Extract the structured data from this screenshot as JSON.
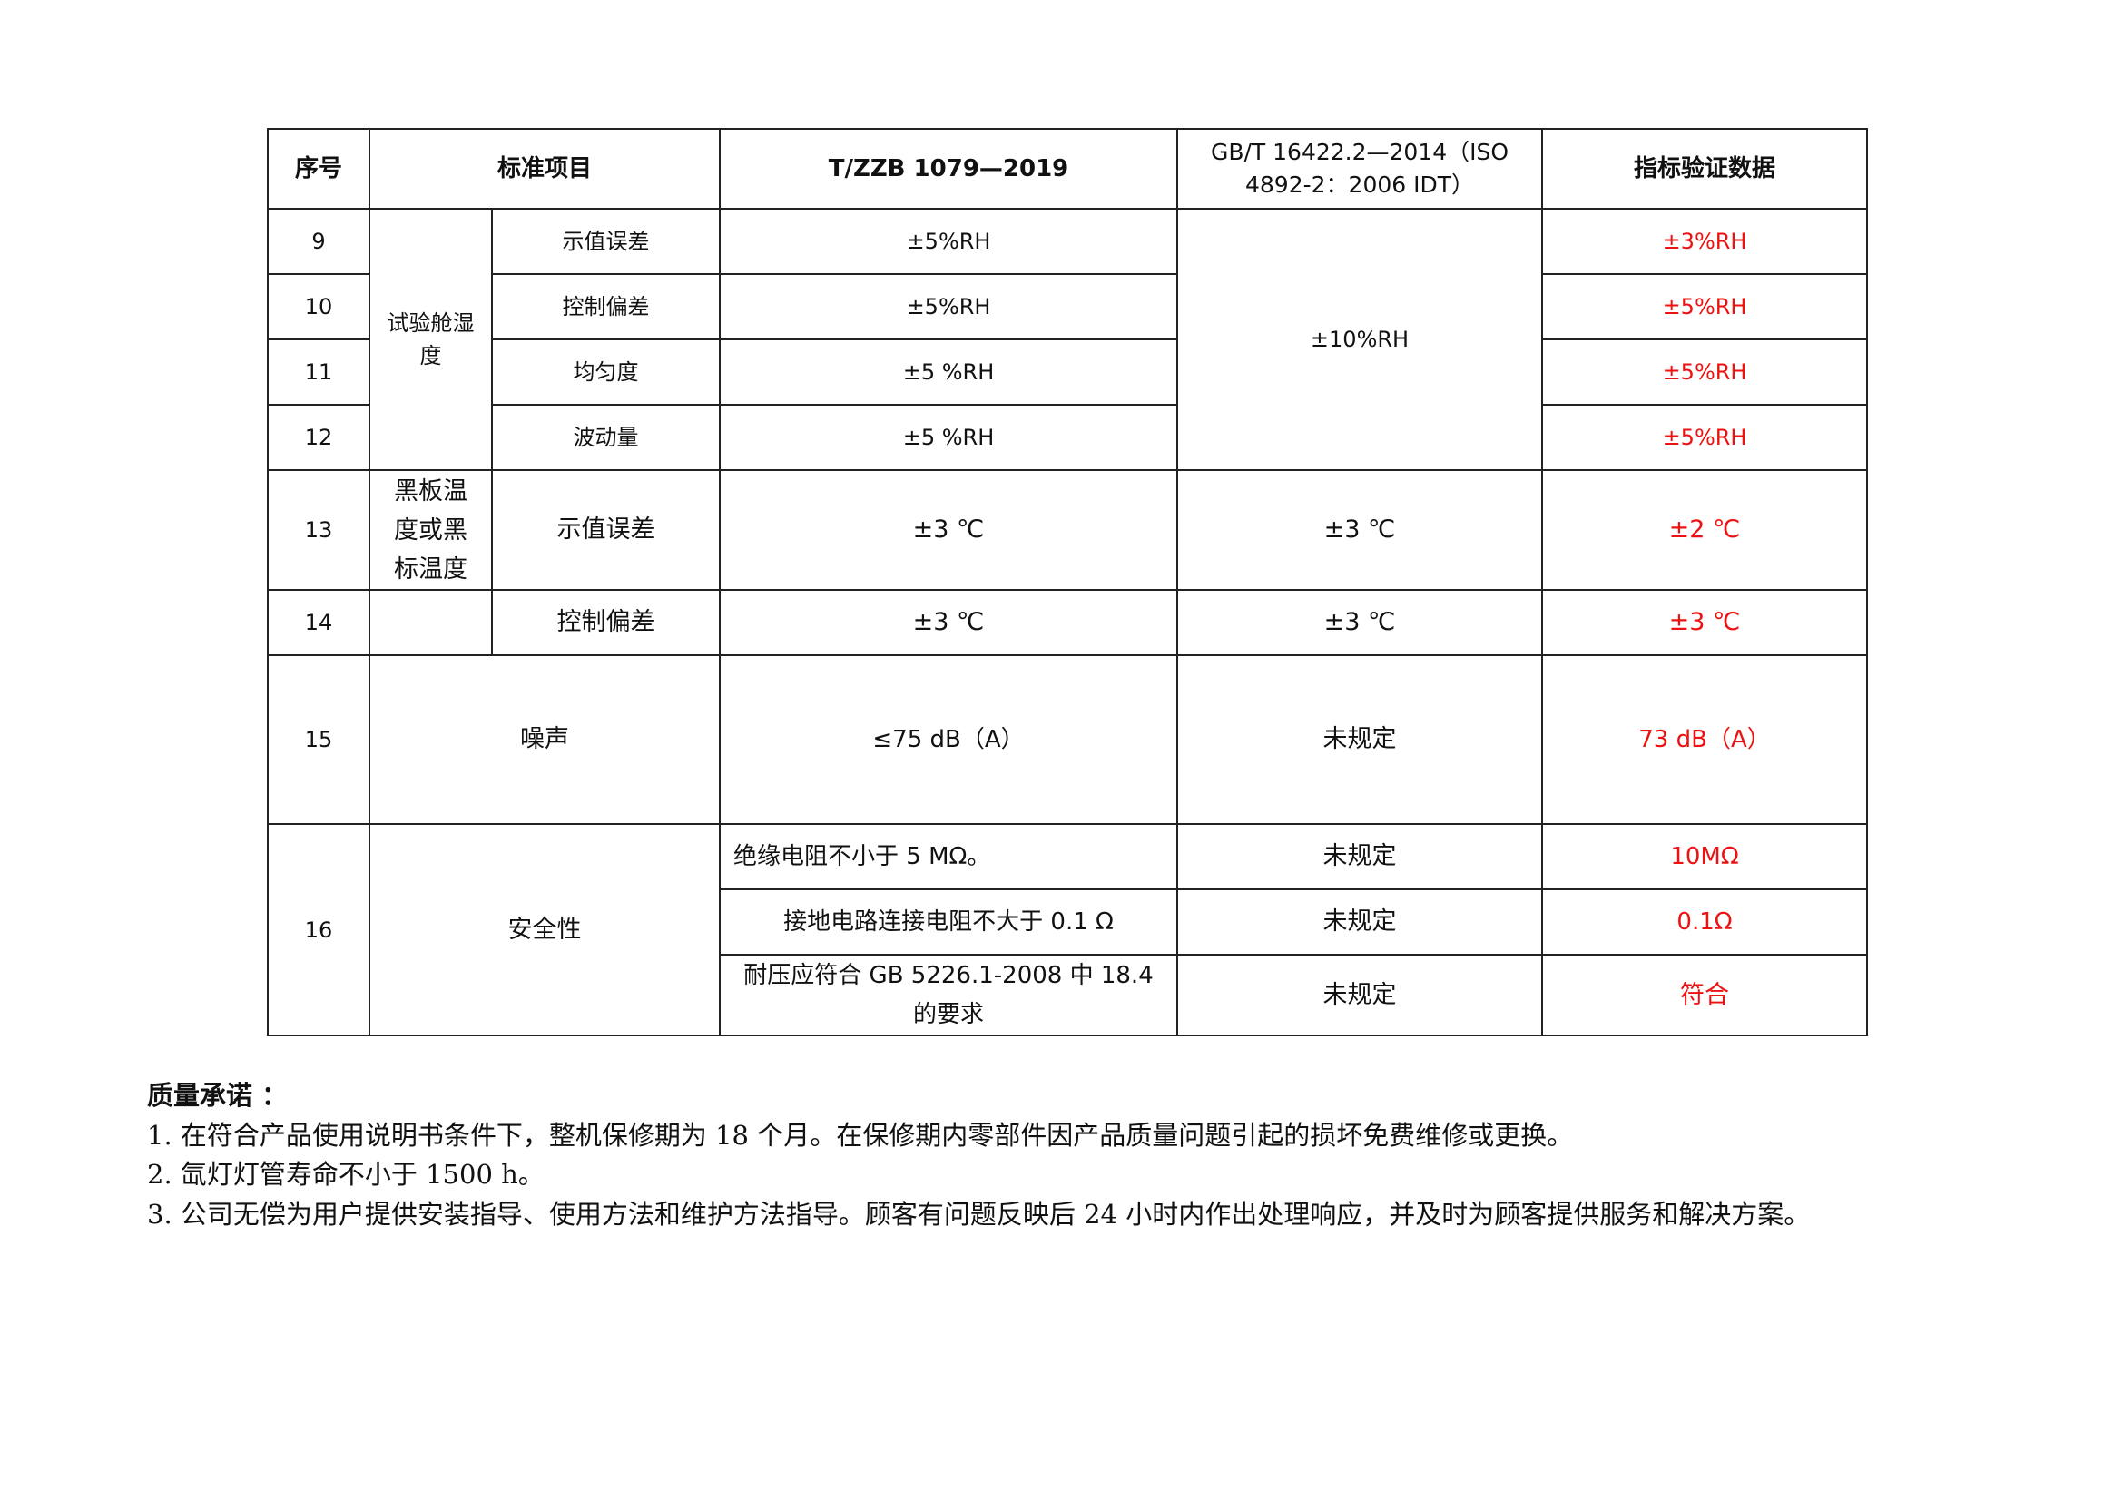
{
  "table": {
    "headers": [
      "序号",
      "标准项目",
      "T/ZZB 1079—2019",
      "GB/T 16422.2—2014（ISO 4892-2：2006 IDT）",
      "指标验证数据"
    ],
    "groups": {
      "humidity": "试验舱湿度",
      "blackpanel": "黑板温度或黑标温度",
      "noise": "噪声",
      "safety": "安全性"
    },
    "rows": [
      {
        "no": "9",
        "item": "示值误差",
        "tzzb": "±5%RH",
        "gbt": "±10%RH",
        "verify": "±3%RH"
      },
      {
        "no": "10",
        "item": "控制偏差",
        "tzzb": "±5%RH",
        "verify": "±5%RH"
      },
      {
        "no": "11",
        "item": "均匀度",
        "tzzb": "±5 %RH",
        "verify": "±5%RH"
      },
      {
        "no": "12",
        "item": "波动量",
        "tzzb": "±5 %RH",
        "verify": "±5%RH"
      },
      {
        "no": "13",
        "item": "示值误差",
        "tzzb": "±3 ℃",
        "gbt": "±3 ℃",
        "verify": "±2 ℃"
      },
      {
        "no": "14",
        "item": "控制偏差",
        "tzzb": "±3 ℃",
        "gbt": "±3 ℃",
        "verify": "±3 ℃"
      },
      {
        "no": "15",
        "tzzb": "≤75 dB（A）",
        "gbt": "未规定",
        "verify": "73 dB（A）"
      },
      {
        "no": "16",
        "sub": [
          {
            "tzzb": "绝缘电阻不小于 5 MΩ。",
            "gbt": "未规定",
            "verify": "10MΩ"
          },
          {
            "tzzb": "接地电路连接电阻不大于 0.1 Ω",
            "gbt": "未规定",
            "verify": "0.1Ω"
          },
          {
            "tzzb": "耐压应符合 GB 5226.1-2008 中 18.4 的要求",
            "gbt": "未规定",
            "verify": "符合"
          }
        ]
      }
    ]
  },
  "notes": {
    "title": "质量承诺 ：",
    "items": [
      "1. 在符合产品使用说明书条件下，整机保修期为 18 个月。在保修期内零部件因产品质量问题引起的损坏免费维修或更换。",
      "2. 氙灯灯管寿命不小于 1500 h。",
      "3. 公司无偿为用户提供安装指导、使用方法和维护方法指导。顾客有问题反映后 24 小时内作出处理响应，并及时为顾客提供服务和解决方案。"
    ]
  },
  "colors": {
    "verify_text": "#ee1111",
    "border": "#222222"
  }
}
